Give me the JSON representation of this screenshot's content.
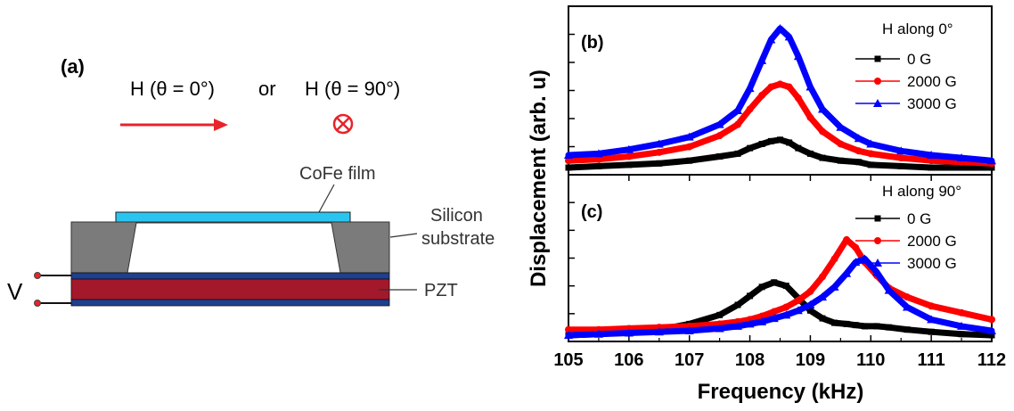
{
  "schematic": {
    "panel_label": "(a)",
    "field_zero": "H (θ = 0°)",
    "or_word": "or",
    "field_ninety": "H (θ = 90°)",
    "film_label": "CoFe film",
    "silicon_label_1": "Silicon",
    "silicon_label_2": "substrate",
    "pzt_label": "PZT",
    "voltage_label": "V",
    "colors": {
      "arrow": "#e8232a",
      "film": "#29c5f0",
      "substrate": "#7b7b7b",
      "electrode": "#1f3f8f",
      "pzt": "#a3182a"
    }
  },
  "axes": {
    "xlabel": "Frequency (kHz)",
    "ylabel": "Displacement (arb. u)"
  },
  "chart_data": [
    {
      "type": "line",
      "panel": "(b)",
      "legend_title": "H along 0°",
      "legend_position": "top-right",
      "xlim": [
        105,
        112
      ],
      "x_ticks": [
        "105",
        "106",
        "107",
        "108",
        "109",
        "110",
        "111",
        "112"
      ],
      "ylim": [
        0,
        1
      ],
      "grid": false,
      "x": [
        105.0,
        105.5,
        106.0,
        106.5,
        107.0,
        107.5,
        107.8,
        108.0,
        108.2,
        108.35,
        108.5,
        108.65,
        108.8,
        109.0,
        109.2,
        109.5,
        109.8,
        110.0,
        110.5,
        111.0,
        111.5,
        112.0
      ],
      "series": [
        {
          "name": "0 G",
          "color": "#000000",
          "marker": "square",
          "values": [
            0.0,
            0.01,
            0.02,
            0.03,
            0.05,
            0.08,
            0.1,
            0.14,
            0.17,
            0.19,
            0.2,
            0.18,
            0.14,
            0.1,
            0.07,
            0.05,
            0.04,
            0.02,
            0.01,
            0.0,
            0.0,
            0.0
          ]
        },
        {
          "name": "2000 G",
          "color": "#ff0000",
          "marker": "circle",
          "values": [
            0.05,
            0.06,
            0.08,
            0.11,
            0.15,
            0.23,
            0.31,
            0.42,
            0.52,
            0.58,
            0.6,
            0.58,
            0.5,
            0.36,
            0.26,
            0.17,
            0.12,
            0.1,
            0.07,
            0.05,
            0.04,
            0.03
          ]
        },
        {
          "name": "3000 G",
          "color": "#0000ff",
          "marker": "triangle",
          "values": [
            0.09,
            0.1,
            0.13,
            0.17,
            0.22,
            0.31,
            0.41,
            0.57,
            0.77,
            0.92,
            1.0,
            0.94,
            0.8,
            0.58,
            0.42,
            0.29,
            0.21,
            0.17,
            0.12,
            0.09,
            0.07,
            0.05
          ]
        }
      ]
    },
    {
      "type": "line",
      "panel": "(c)",
      "legend_title": "H along 90°",
      "legend_position": "top-right",
      "xlim": [
        105,
        112
      ],
      "x_ticks": [
        "105",
        "106",
        "107",
        "108",
        "109",
        "110",
        "111",
        "112"
      ],
      "ylim": [
        0,
        1
      ],
      "grid": false,
      "x": [
        105.0,
        105.5,
        106.0,
        106.5,
        107.0,
        107.5,
        107.8,
        108.0,
        108.2,
        108.4,
        108.6,
        108.8,
        109.0,
        109.2,
        109.4,
        109.6,
        109.75,
        109.9,
        110.1,
        110.3,
        110.6,
        111.0,
        111.5,
        112.0
      ],
      "series": [
        {
          "name": "0 G",
          "color": "#000000",
          "marker": "square",
          "values": [
            0.0,
            0.01,
            0.03,
            0.05,
            0.1,
            0.18,
            0.27,
            0.35,
            0.43,
            0.47,
            0.44,
            0.33,
            0.22,
            0.15,
            0.11,
            0.1,
            0.09,
            0.08,
            0.08,
            0.07,
            0.05,
            0.03,
            0.01,
            0.0
          ]
        },
        {
          "name": "2000 G",
          "color": "#ff0000",
          "marker": "circle",
          "values": [
            0.05,
            0.05,
            0.06,
            0.07,
            0.08,
            0.1,
            0.12,
            0.14,
            0.17,
            0.21,
            0.25,
            0.31,
            0.39,
            0.52,
            0.68,
            0.85,
            0.78,
            0.65,
            0.53,
            0.42,
            0.34,
            0.26,
            0.2,
            0.14
          ]
        },
        {
          "name": "3000 G",
          "color": "#0000ff",
          "marker": "triangle",
          "values": [
            0.0,
            0.01,
            0.02,
            0.03,
            0.04,
            0.06,
            0.08,
            0.1,
            0.12,
            0.15,
            0.18,
            0.22,
            0.27,
            0.34,
            0.43,
            0.55,
            0.65,
            0.68,
            0.56,
            0.4,
            0.25,
            0.14,
            0.08,
            0.04
          ]
        }
      ]
    }
  ]
}
